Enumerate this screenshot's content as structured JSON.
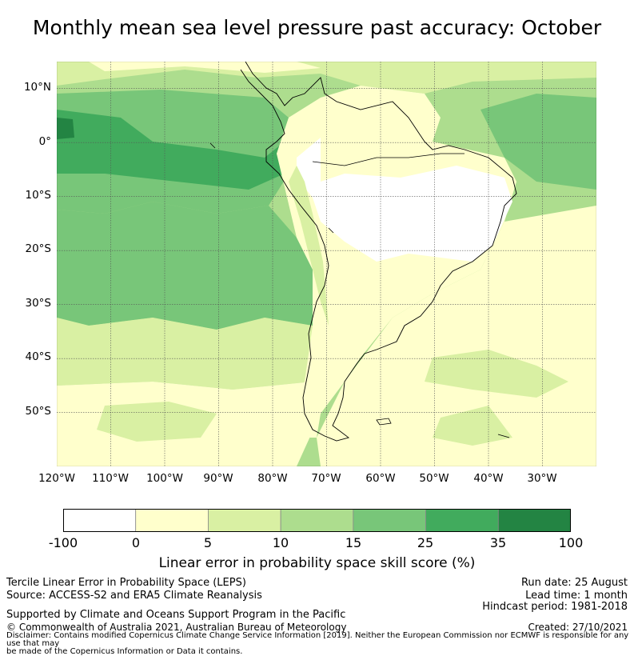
{
  "title": "Monthly mean sea level pressure past accuracy: October",
  "map": {
    "lat_ticks": [
      "10°N",
      "0°",
      "10°S",
      "20°S",
      "30°S",
      "40°S",
      "50°S"
    ],
    "lon_ticks": [
      "120°W",
      "110°W",
      "100°W",
      "90°W",
      "80°W",
      "70°W",
      "60°W",
      "50°W",
      "40°W",
      "30°W"
    ],
    "extent": {
      "lon_min": -120,
      "lon_max": -20,
      "lat_min": -60,
      "lat_max": 15
    }
  },
  "colorbar": {
    "ticks": [
      "-100",
      "0",
      "5",
      "10",
      "15",
      "25",
      "35",
      "100"
    ],
    "colors": [
      "#ffffff",
      "#ffffcc",
      "#d9f0a3",
      "#addd8e",
      "#78c679",
      "#41ab5d",
      "#238443"
    ],
    "label": "Linear error in probability space skill score (%)"
  },
  "footer": {
    "line1": "Tercile Linear Error in Probability Space (LEPS)",
    "line2": "Source: ACCESS-S2 and ERA5 Climate Reanalysis",
    "line3": "Supported by Climate and Oceans Support Program in the Pacific",
    "line4": "© Commonwealth of Australia 2021, Australian Bureau of Meteorology",
    "run_date": "Run date: 25 August",
    "lead_time": "Lead time: 1 month",
    "hindcast": "Hindcast period: 1981-2018",
    "created": "Created: 27/10/2021",
    "disclaimer1": "Disclaimer: Contains modified Copernicus Climate Change Service Information [2019]. Neither the European Commission nor ECMWF is responsible for any use that may",
    "disclaimer2": "be made of the Copernicus Information or Data it contains."
  }
}
